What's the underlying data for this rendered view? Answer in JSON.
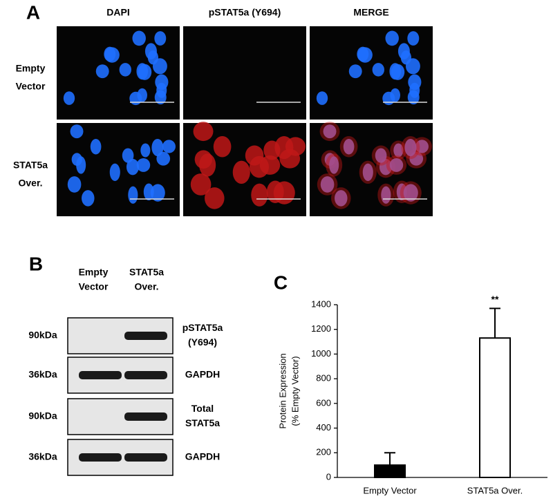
{
  "panel_a": {
    "label": "A",
    "columns": [
      "DAPI",
      "pSTAT5a (Y694)",
      "MERGE"
    ],
    "rows": [
      [
        "Empty",
        "Vector"
      ],
      [
        "STAT5a",
        "Over."
      ]
    ]
  },
  "panel_b": {
    "label": "B",
    "lanes": [
      [
        "Empty",
        "Vector"
      ],
      [
        "STAT5a",
        "Over."
      ]
    ],
    "blots": [
      {
        "size": "90kDa",
        "target": [
          "pSTAT5a",
          "(Y694)"
        ]
      },
      {
        "size": "36kDa",
        "target": [
          "GAPDH"
        ]
      },
      {
        "size": "90kDa",
        "target": [
          "Total",
          "STAT5a"
        ]
      },
      {
        "size": "36kDa",
        "target": [
          "GAPDH"
        ]
      }
    ]
  },
  "chart_data": {
    "type": "bar",
    "label": "C",
    "y_label": [
      "Protein Expression",
      "(% Empty Vector)"
    ],
    "categories": [
      "Empty Vector",
      "STAT5a Over."
    ],
    "values": [
      100,
      1130
    ],
    "errors": [
      100,
      240
    ],
    "annotations": [
      null,
      "**"
    ],
    "colors": [
      "#000000",
      "#ffffff"
    ],
    "ylim": [
      0,
      1400
    ],
    "yticks": [
      0,
      200,
      400,
      600,
      800,
      1000,
      1200,
      1400
    ],
    "grid": false
  }
}
